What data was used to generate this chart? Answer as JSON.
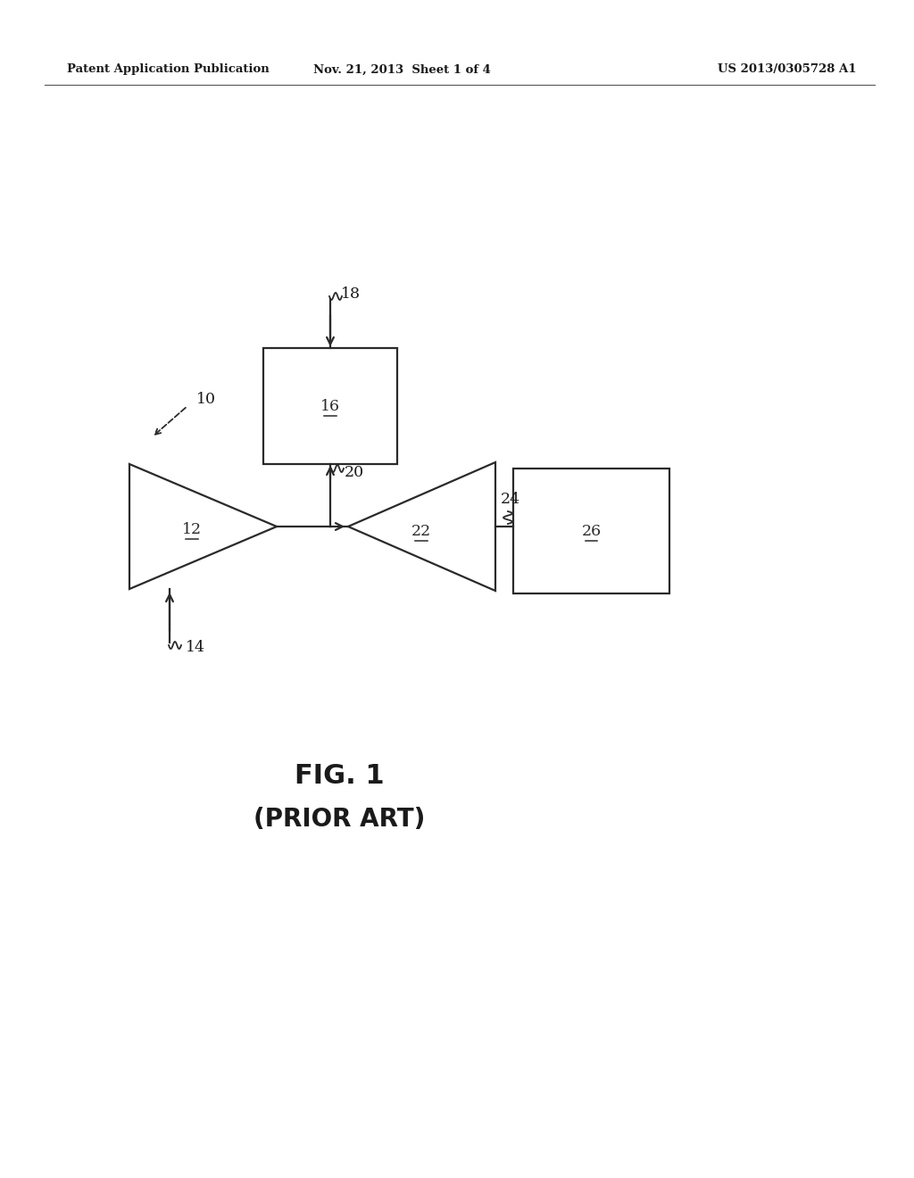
{
  "bg_color": "#ffffff",
  "header_left": "Patent Application Publication",
  "header_mid": "Nov. 21, 2013  Sheet 1 of 4",
  "header_right": "US 2013/0305728 A1",
  "fig_label": "FIG. 1",
  "fig_sublabel": "(PRIOR ART)",
  "label_10": "10",
  "label_12": "12",
  "label_14": "14",
  "label_16": "16",
  "label_18": "18",
  "label_20": "20",
  "label_22": "22",
  "label_24": "24",
  "label_26": "26",
  "line_color": "#2a2a2a",
  "line_width": 1.6
}
